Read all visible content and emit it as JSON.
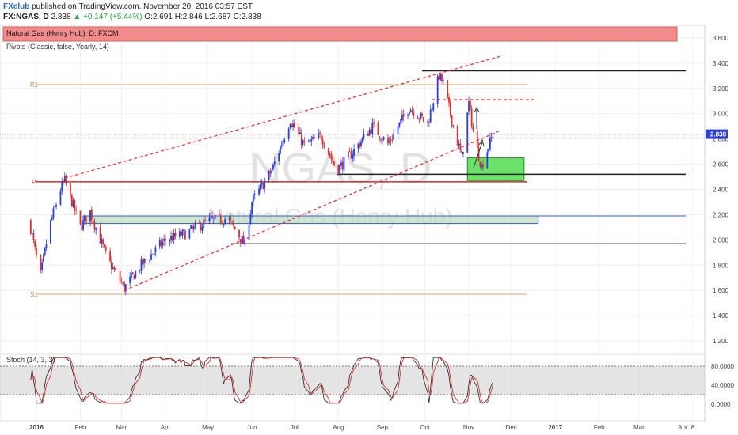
{
  "header": {
    "brand": "FXclub",
    "published": "published on TradingView.com, November 20, 2016 03:57 EST",
    "symbol": "FX:NGAS, D",
    "last": "2.838",
    "change": "▲ +0.147 (+5.44%)",
    "ohlc": "O:2.691 H:2.846 L:2.687 C:2.838"
  },
  "legend": {
    "series": "Natural Gas (Henry Hub), D, FXCM",
    "indicator": "Pivots (Classic, false, Yearly, 14)"
  },
  "watermark": {
    "symbol": "NGAS, D",
    "name": "Natural Gas (Henry Hub)"
  },
  "oscillator": {
    "label": "Stoch (14, 3, 3)"
  },
  "colors": {
    "up": "#2b3fd6",
    "down": "#d63030",
    "channel": "#e03a3a",
    "pivot_p": "#d62828",
    "pivot_rs": "#e3a070",
    "support_zone": "#5be05b",
    "price_tag": "#2b3fd6",
    "stoch_k": "#333333",
    "stoch_d": "#d63030"
  },
  "chart_data": {
    "type": "candlestick",
    "y_range": [
      1.1,
      3.7
    ],
    "y_ticks": [
      "3.600",
      "3.400",
      "3.200",
      "3.000",
      "2.800",
      "2.600",
      "2.400",
      "2.200",
      "2.000",
      "1.800",
      "1.600",
      "1.400",
      "1.200"
    ],
    "y_tick_values": [
      3.6,
      3.4,
      3.2,
      3.0,
      2.8,
      2.6,
      2.4,
      2.2,
      2.0,
      1.8,
      1.6,
      1.4,
      1.2
    ],
    "last_price": "2.838",
    "last_price_value": 2.838,
    "x_labels": [
      "2016",
      "Feb",
      "Mar",
      "Apr",
      "May",
      "Jun",
      "Jul",
      "Aug",
      "Sep",
      "Oct",
      "Nov",
      "Dec",
      "2017",
      "Feb",
      "Mar",
      "Apr",
      "8"
    ],
    "x_label_dates": [
      "2016-01-01",
      "2016-02-01",
      "2016-03-01",
      "2016-04-01",
      "2016-05-01",
      "2016-06-01",
      "2016-07-01",
      "2016-08-01",
      "2016-09-01",
      "2016-10-01",
      "2016-11-01",
      "2016-12-01",
      "2017-01-01",
      "2017-02-01",
      "2017-03-01",
      "2017-04-01",
      "2017-04-08"
    ],
    "anchors": [
      {
        "date": "2015-12-27",
        "close": 2.15
      },
      {
        "date": "2016-01-02",
        "close": 1.8
      },
      {
        "date": "2016-01-04",
        "close": 1.72
      },
      {
        "date": "2016-01-10",
        "close": 2.1
      },
      {
        "date": "2016-01-18",
        "close": 2.4
      },
      {
        "date": "2016-01-21",
        "close": 2.47
      },
      {
        "date": "2016-02-01",
        "close": 2.1
      },
      {
        "date": "2016-02-08",
        "close": 2.22
      },
      {
        "date": "2016-02-20",
        "close": 1.85
      },
      {
        "date": "2016-03-03",
        "close": 1.62
      },
      {
        "date": "2016-03-15",
        "close": 1.8
      },
      {
        "date": "2016-04-01",
        "close": 2.0
      },
      {
        "date": "2016-04-15",
        "close": 2.05
      },
      {
        "date": "2016-05-01",
        "close": 2.15
      },
      {
        "date": "2016-05-15",
        "close": 2.17
      },
      {
        "date": "2016-05-27",
        "close": 1.96
      },
      {
        "date": "2016-06-01",
        "close": 2.3
      },
      {
        "date": "2016-06-15",
        "close": 2.55
      },
      {
        "date": "2016-06-28",
        "close": 2.95
      },
      {
        "date": "2016-07-08",
        "close": 2.75
      },
      {
        "date": "2016-07-20",
        "close": 2.82
      },
      {
        "date": "2016-07-31",
        "close": 2.55
      },
      {
        "date": "2016-08-10",
        "close": 2.68
      },
      {
        "date": "2016-08-25",
        "close": 2.9
      },
      {
        "date": "2016-09-05",
        "close": 2.76
      },
      {
        "date": "2016-09-20",
        "close": 3.05
      },
      {
        "date": "2016-10-03",
        "close": 2.92
      },
      {
        "date": "2016-10-11",
        "close": 3.3
      },
      {
        "date": "2016-10-14",
        "close": 3.24
      },
      {
        "date": "2016-10-20",
        "close": 2.95
      },
      {
        "date": "2016-10-27",
        "close": 2.65
      },
      {
        "date": "2016-11-01",
        "close": 3.08
      },
      {
        "date": "2016-11-05",
        "close": 2.8
      },
      {
        "date": "2016-11-10",
        "close": 2.58
      },
      {
        "date": "2016-11-18",
        "close": 2.838
      }
    ],
    "levels": [
      {
        "name": "R1",
        "value": 3.23,
        "kind": "pivot-rs"
      },
      {
        "name": "P",
        "value": 2.46,
        "kind": "pivot-p"
      },
      {
        "name": "S1",
        "value": 1.57,
        "kind": "pivot-rs"
      },
      {
        "name": "resistance-3.34",
        "value": 3.34,
        "kind": "black"
      },
      {
        "name": "resistance-3.11",
        "value": 3.11,
        "kind": "red-dashed"
      },
      {
        "name": "support-2.52",
        "value": 2.52,
        "kind": "black"
      },
      {
        "name": "support-2.19",
        "value": 2.19,
        "kind": "blue"
      },
      {
        "name": "support-1.97",
        "value": 1.97,
        "kind": "black"
      }
    ],
    "channel": {
      "upper": [
        {
          "date": "2016-01-21",
          "value": 2.49
        },
        {
          "date": "2016-11-25",
          "value": 3.46
        }
      ],
      "lower": [
        {
          "date": "2016-03-03",
          "value": 1.6
        },
        {
          "date": "2016-11-22",
          "value": 2.86
        }
      ]
    },
    "zones": [
      {
        "name": "support-zone-green",
        "from": "2016-10-31",
        "to": "2016-12-10",
        "low": 2.47,
        "high": 2.65
      },
      {
        "name": "support-zone-blue",
        "from": "2016-02-03",
        "to": "2016-12-20",
        "low": 2.13,
        "high": 2.19
      }
    ],
    "stoch": {
      "y_ticks": [
        "80.0000",
        "40.0000",
        "0.0000"
      ],
      "y_tick_values": [
        80,
        40,
        0
      ],
      "bands": [
        80,
        20
      ]
    }
  }
}
